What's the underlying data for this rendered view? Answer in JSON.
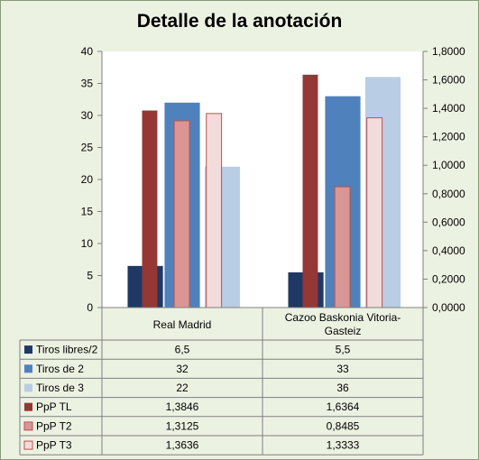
{
  "chart_data": {
    "type": "bar",
    "title": "Detalle de la anotación",
    "categories": [
      "Real Madrid",
      "Cazoo Baskonia Vitoria-Gasteiz"
    ],
    "category_lines": [
      [
        "Real Madrid"
      ],
      [
        "Cazoo Baskonia Vitoria-",
        "Gasteiz"
      ]
    ],
    "primary_axis": {
      "side": "left",
      "ylim": [
        0,
        40
      ],
      "ticks": [
        "0",
        "5",
        "10",
        "15",
        "20",
        "25",
        "30",
        "35",
        "40"
      ]
    },
    "secondary_axis": {
      "side": "right",
      "ylim": [
        0,
        1.8
      ],
      "ticks": [
        "0,0000",
        "0,2000",
        "0,4000",
        "0,6000",
        "0,8000",
        "1,0000",
        "1,2000",
        "1,4000",
        "1,6000",
        "1,8000"
      ]
    },
    "series": [
      {
        "name": "Tiros libres/2",
        "axis": "primary",
        "color": "#1f3864",
        "values": [
          6.5,
          5.5
        ],
        "labels": [
          "6,5",
          "5,5"
        ]
      },
      {
        "name": "Tiros de 2",
        "axis": "primary",
        "color": "#4f81bd",
        "values": [
          32,
          33
        ],
        "labels": [
          "32",
          "33"
        ]
      },
      {
        "name": "Tiros de 3",
        "axis": "primary",
        "color": "#b9cde5",
        "values": [
          22,
          36
        ],
        "labels": [
          "22",
          "36"
        ]
      },
      {
        "name": "PpP TL",
        "axis": "secondary",
        "color": "#953735",
        "values": [
          1.3846,
          1.6364
        ],
        "labels": [
          "1,3846",
          "1,6364"
        ]
      },
      {
        "name": "PpP T2",
        "axis": "secondary",
        "color": "#d99694",
        "values": [
          1.3125,
          0.8485
        ],
        "labels": [
          "1,3125",
          "0,8485"
        ]
      },
      {
        "name": "PpP T3",
        "axis": "secondary",
        "color": "#f2dcdb",
        "values": [
          1.3636,
          1.3333
        ],
        "labels": [
          "1,3636",
          "1,3333"
        ]
      }
    ],
    "legend": "data-table",
    "gridlines": false
  }
}
